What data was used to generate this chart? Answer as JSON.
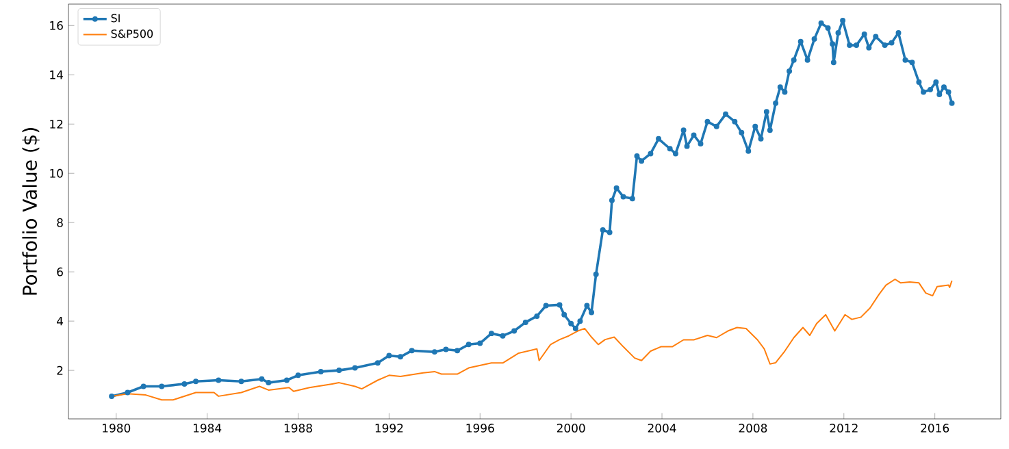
{
  "chart_data": {
    "type": "line",
    "ylabel": "Portfolio Value ($)",
    "xlim": [
      1977.9,
      2018.9
    ],
    "ylim": [
      0.03,
      16.87
    ],
    "xticks": [
      1980,
      1984,
      1988,
      1992,
      1996,
      2000,
      2004,
      2008,
      2012,
      2016
    ],
    "yticks": [
      2,
      4,
      6,
      8,
      10,
      12,
      14,
      16
    ],
    "grid": false,
    "legend": "top left",
    "series": [
      {
        "name": "SI",
        "color": "#1f77b4",
        "marker": "circle",
        "x": [
          1979.8,
          1980.5,
          1981.2,
          1982,
          1983,
          1983.5,
          1984.5,
          1985.5,
          1986.4,
          1986.7,
          1987.5,
          1988,
          1989,
          1989.8,
          1990.5,
          1991.5,
          1992,
          1992.5,
          1993,
          1994,
          1994.5,
          1995,
          1995.5,
          1996,
          1996.5,
          1997,
          1997.5,
          1998,
          1998.5,
          1998.9,
          1999.5,
          1999.7,
          2000,
          2000.2,
          2000.4,
          2000.7,
          2000.9,
          2001.1,
          2001.4,
          2001.7,
          2001.8,
          2002.0,
          2002.3,
          2002.7,
          2002.9,
          2003.1,
          2003.5,
          2003.85,
          2004.35,
          2004.6,
          2004.95,
          2005.1,
          2005.4,
          2005.7,
          2006.0,
          2006.4,
          2006.8,
          2007.2,
          2007.5,
          2007.8,
          2008.1,
          2008.35,
          2008.6,
          2008.75,
          2009.0,
          2009.2,
          2009.4,
          2009.6,
          2009.8,
          2010.1,
          2010.4,
          2010.7,
          2011.0,
          2011.3,
          2011.5,
          2011.55,
          2011.75,
          2011.95,
          2012.25,
          2012.55,
          2012.9,
          2013.1,
          2013.4,
          2013.8,
          2014.1,
          2014.4,
          2014.7,
          2015.0,
          2015.3,
          2015.5,
          2015.8,
          2016.05,
          2016.2,
          2016.4,
          2016.6,
          2016.75
        ],
        "values": [
          0.95,
          1.1,
          1.35,
          1.35,
          1.45,
          1.55,
          1.6,
          1.55,
          1.65,
          1.5,
          1.6,
          1.8,
          1.95,
          2.0,
          2.1,
          2.3,
          2.6,
          2.55,
          2.8,
          2.75,
          2.85,
          2.8,
          3.05,
          3.1,
          3.5,
          3.4,
          3.6,
          3.95,
          4.2,
          4.63,
          4.66,
          4.26,
          3.9,
          3.7,
          4.0,
          4.63,
          4.35,
          5.9,
          7.7,
          7.6,
          8.9,
          9.4,
          9.05,
          8.97,
          10.7,
          10.5,
          10.8,
          11.4,
          11.0,
          10.8,
          11.75,
          11.1,
          11.55,
          11.2,
          12.1,
          11.9,
          12.4,
          12.1,
          11.65,
          10.9,
          11.9,
          11.4,
          12.5,
          11.75,
          12.85,
          13.5,
          13.3,
          14.15,
          14.6,
          15.35,
          14.6,
          15.45,
          16.1,
          15.9,
          15.25,
          14.5,
          15.7,
          16.2,
          15.2,
          15.2,
          15.65,
          15.1,
          15.55,
          15.2,
          15.3,
          15.7,
          14.6,
          14.5,
          13.7,
          13.3,
          13.4,
          13.7,
          13.2,
          13.5,
          13.3,
          12.85
        ]
      },
      {
        "name": "S&P500",
        "color": "#ff7f0e",
        "x": [
          1979.8,
          1980.5,
          1981.3,
          1982,
          1982.5,
          1983.5,
          1984.3,
          1984.5,
          1985.5,
          1986.3,
          1986.7,
          1987.6,
          1987.8,
          1988.5,
          1989.5,
          1989.8,
          1990.5,
          1990.8,
          1991.5,
          1992,
          1992.5,
          1993.5,
          1994,
          1994.3,
          1995,
          1995.5,
          1996.5,
          1997,
          1997.7,
          1998.5,
          1998.6,
          1999.1,
          1999.5,
          1999.9,
          2000.3,
          2000.6,
          2000.9,
          2001.2,
          2001.5,
          2001.9,
          2002.3,
          2002.8,
          2003.1,
          2003.5,
          2003.95,
          2004.45,
          2004.95,
          2005.4,
          2006.0,
          2006.4,
          2006.9,
          2007.3,
          2007.7,
          2008.2,
          2008.5,
          2008.75,
          2009.0,
          2009.4,
          2009.8,
          2010.2,
          2010.5,
          2010.8,
          2011.2,
          2011.6,
          2012.05,
          2012.35,
          2012.75,
          2013.15,
          2013.55,
          2013.85,
          2014.25,
          2014.5,
          2014.9,
          2015.3,
          2015.6,
          2015.9,
          2016.1,
          2016.6,
          2016.65,
          2016.75
        ],
        "values": [
          0.95,
          1.05,
          1.0,
          0.8,
          0.8,
          1.1,
          1.1,
          0.95,
          1.1,
          1.35,
          1.2,
          1.3,
          1.15,
          1.3,
          1.45,
          1.5,
          1.35,
          1.25,
          1.6,
          1.8,
          1.75,
          1.9,
          1.95,
          1.85,
          1.85,
          2.1,
          2.3,
          2.3,
          2.7,
          2.87,
          2.4,
          3.05,
          3.25,
          3.4,
          3.6,
          3.7,
          3.35,
          3.05,
          3.25,
          3.35,
          2.96,
          2.5,
          2.4,
          2.78,
          2.96,
          2.96,
          3.24,
          3.24,
          3.42,
          3.33,
          3.6,
          3.74,
          3.7,
          3.24,
          2.87,
          2.26,
          2.31,
          2.78,
          3.33,
          3.74,
          3.42,
          3.9,
          4.26,
          3.6,
          4.26,
          4.07,
          4.16,
          4.53,
          5.09,
          5.46,
          5.7,
          5.55,
          5.59,
          5.55,
          5.14,
          5.03,
          5.4,
          5.46,
          5.37,
          5.64
        ]
      }
    ]
  }
}
